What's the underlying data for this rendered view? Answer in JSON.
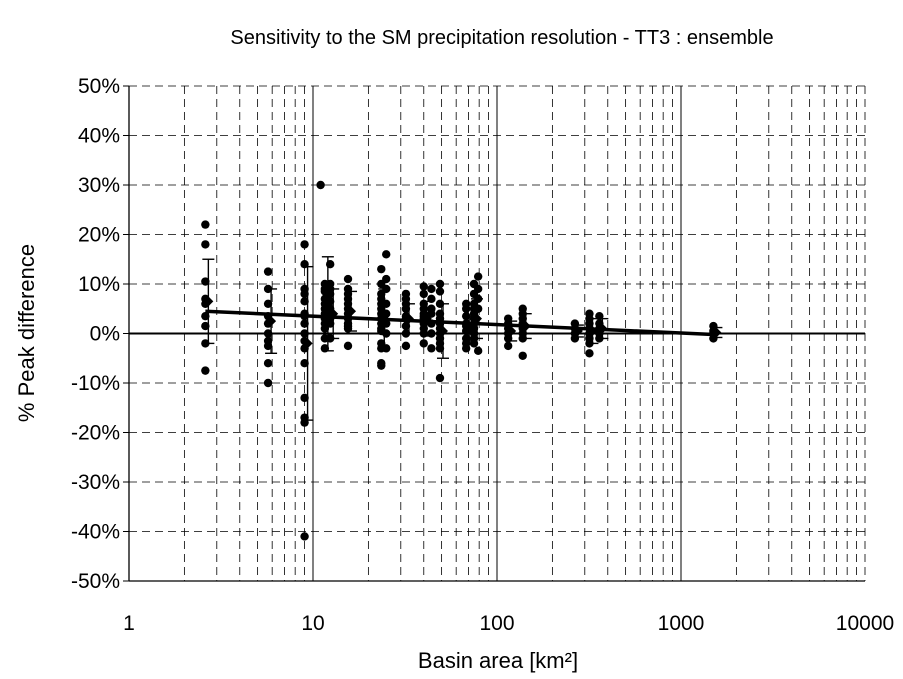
{
  "chart_data": {
    "type": "scatter",
    "title": "Sensitivity to the SM precipitation resolution - TT3 : ensemble",
    "xlabel": "Basin area [km²]",
    "ylabel": "% Peak difference",
    "x_scale": "log",
    "xlim": [
      1,
      10000
    ],
    "ylim": [
      -0.5,
      0.5
    ],
    "x_ticks": [
      "1",
      "10",
      "100",
      "1000",
      "10000"
    ],
    "y_ticks": [
      "50%",
      "40%",
      "30%",
      "20%",
      "10%",
      "0%",
      "-10%",
      "-20%",
      "-30%",
      "-40%",
      "-50%"
    ],
    "grid": true,
    "legend": "none",
    "colors": {
      "points": "#000000",
      "grid": "#000000",
      "zero_line": "#000000"
    },
    "groups": [
      {
        "x": 2.6,
        "y": [
          0.22,
          0.18,
          0.105,
          0.07,
          0.06,
          0.035,
          0.015,
          -0.02,
          -0.075
        ],
        "mean": 0.065,
        "sd": 0.085
      },
      {
        "x": 5.7,
        "y": [
          0.125,
          0.09,
          0.06,
          0.035,
          0.02,
          0.0,
          -0.015,
          -0.025,
          -0.06,
          -0.1
        ],
        "mean": 0.025,
        "sd": 0.065
      },
      {
        "x": 9.0,
        "y": [
          0.18,
          0.14,
          0.09,
          0.08,
          0.065,
          0.04,
          0.035,
          0.02,
          0.0,
          -0.015,
          -0.03,
          -0.06,
          -0.13,
          -0.17,
          -0.18,
          -0.41
        ],
        "mean": -0.02,
        "sd": 0.155
      },
      {
        "x": 11.0,
        "y": [
          0.3
        ]
      },
      {
        "x": 11.6,
        "y": [
          0.1,
          0.09,
          0.085,
          0.07,
          0.06,
          0.05,
          0.04,
          0.03,
          0.02,
          0.01,
          -0.01,
          -0.03
        ],
        "mean": 0.06,
        "sd": 0.095
      },
      {
        "x": 12.4,
        "y": [
          0.14,
          0.1,
          0.09,
          0.08,
          0.065,
          0.05,
          0.04,
          0.03,
          0.02,
          -0.01
        ],
        "mean": 0.04,
        "sd": 0.05
      },
      {
        "x": 15.5,
        "y": [
          0.11,
          0.09,
          0.08,
          0.07,
          0.06,
          0.05,
          0.04,
          0.03,
          0.02,
          0.015,
          0.01,
          -0.025
        ],
        "mean": 0.045,
        "sd": 0.04
      },
      {
        "x": 23.5,
        "y": [
          0.13,
          0.1,
          0.08,
          0.07,
          0.06,
          0.05,
          0.04,
          0.03,
          0.02,
          0.01,
          0.005,
          -0.02,
          -0.03,
          -0.06,
          -0.065
        ],
        "mean": 0.03,
        "sd": 0.06
      },
      {
        "x": 25.0,
        "y": [
          0.16,
          0.11,
          0.09,
          0.06,
          0.04,
          0.02,
          0.0,
          -0.03
        ]
      },
      {
        "x": 32.0,
        "y": [
          0.08,
          0.07,
          0.06,
          0.05,
          0.035,
          0.03,
          0.015,
          0.0,
          -0.025
        ],
        "mean": 0.03,
        "sd": 0.03
      },
      {
        "x": 40.0,
        "y": [
          0.095,
          0.08,
          0.06,
          0.05,
          0.04,
          0.035,
          0.03,
          0.02,
          0.01,
          0.0,
          -0.02
        ],
        "mean": 0.03,
        "sd": 0.035
      },
      {
        "x": 44.0,
        "y": [
          0.09,
          0.07,
          0.05,
          0.04,
          0.02,
          0.0,
          -0.03
        ]
      },
      {
        "x": 49.0,
        "y": [
          0.1,
          0.085,
          0.06,
          0.04,
          0.03,
          0.02,
          0.01,
          0.0,
          -0.01,
          -0.02,
          -0.03,
          -0.09
        ],
        "mean": 0.005,
        "sd": 0.055
      },
      {
        "x": 68.0,
        "y": [
          0.06,
          0.05,
          0.035,
          0.02,
          0.015,
          0.005,
          -0.01,
          -0.02,
          -0.03
        ],
        "mean": 0.01,
        "sd": 0.025
      },
      {
        "x": 75.0,
        "y": [
          0.1,
          0.08,
          0.06,
          0.05,
          0.04,
          0.03,
          0.02,
          0.01,
          0.0,
          -0.01,
          -0.02
        ],
        "mean": 0.03,
        "sd": 0.04
      },
      {
        "x": 79.0,
        "y": [
          0.115,
          0.09,
          0.07,
          0.05,
          -0.035
        ]
      },
      {
        "x": 115.0,
        "y": [
          0.03,
          0.02,
          0.01,
          0.0,
          -0.01,
          -0.025
        ],
        "mean": 0.005,
        "sd": 0.02
      },
      {
        "x": 138.0,
        "y": [
          0.05,
          0.04,
          0.03,
          0.02,
          0.01,
          0.0,
          -0.01,
          -0.045
        ],
        "mean": 0.015,
        "sd": 0.025
      },
      {
        "x": 265.0,
        "y": [
          0.02,
          0.01,
          0.0,
          -0.01
        ],
        "mean": 0.005,
        "sd": 0.012
      },
      {
        "x": 318.0,
        "y": [
          0.04,
          0.03,
          0.02,
          0.01,
          0.0,
          -0.01,
          -0.02,
          -0.04
        ],
        "mean": 0.005,
        "sd": 0.025
      },
      {
        "x": 360.0,
        "y": [
          0.035,
          0.02,
          0.01,
          0.0,
          -0.01
        ],
        "mean": 0.01,
        "sd": 0.02
      },
      {
        "x": 1500.0,
        "y": [
          0.015,
          0.005,
          0.0,
          -0.01
        ],
        "mean": 0.002,
        "sd": 0.01
      }
    ],
    "trendline": {
      "x": [
        2.6,
        1500
      ],
      "y": [
        0.045,
        -0.002
      ]
    }
  }
}
